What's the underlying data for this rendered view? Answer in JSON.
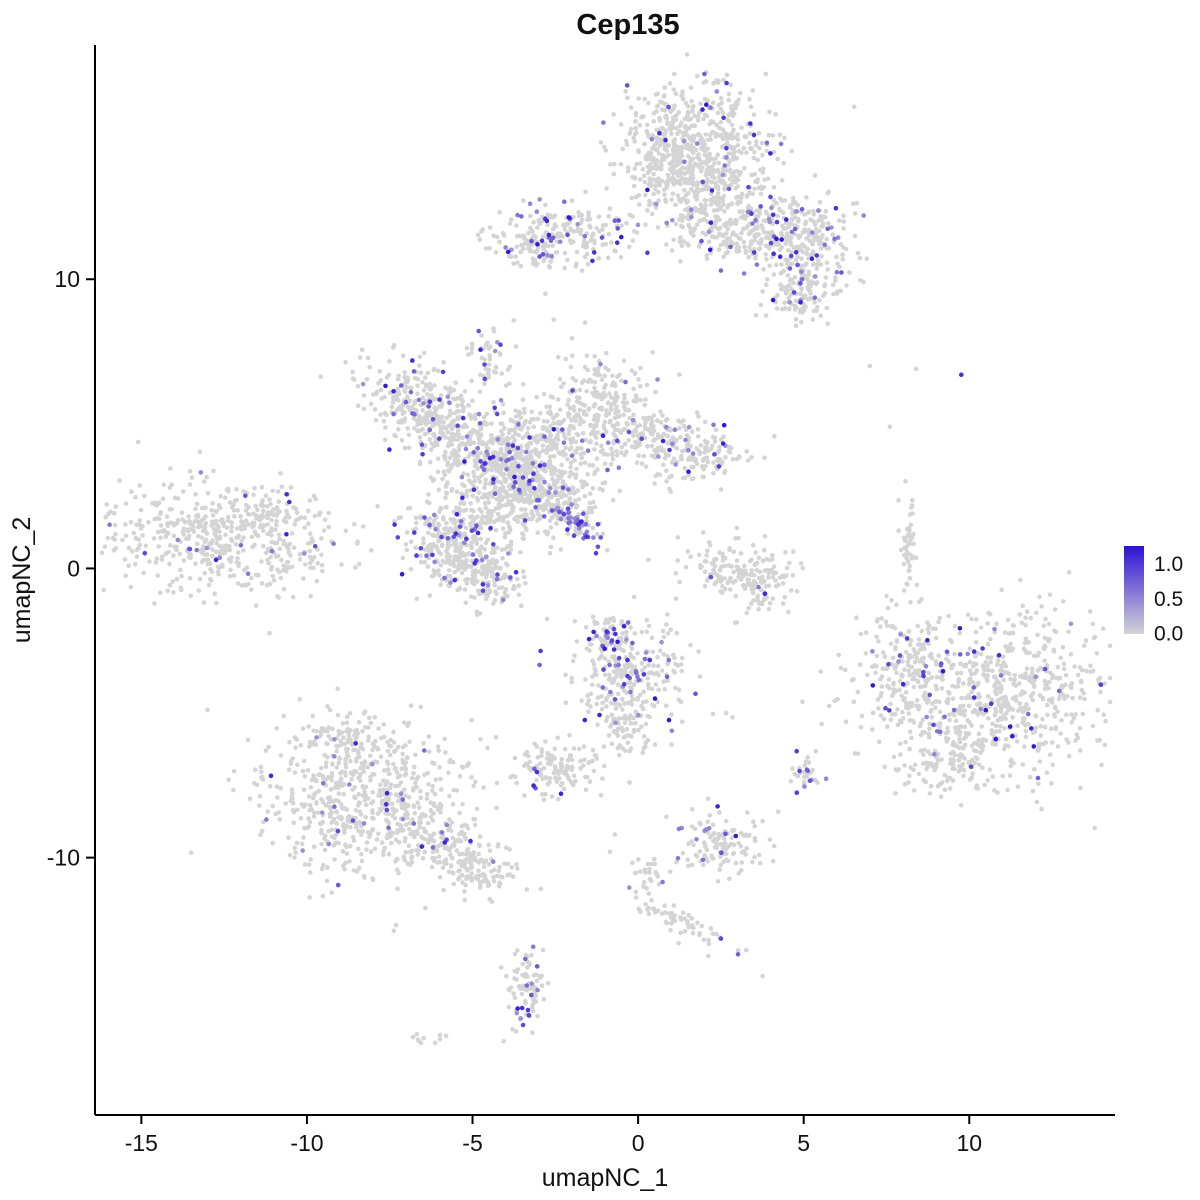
{
  "chart_data": {
    "type": "scatter",
    "title": "Cep135",
    "xlabel": "umapNC_1",
    "ylabel": "umapNC_2",
    "xlim": [
      -16.4,
      14.4
    ],
    "ylim": [
      -18.9,
      18.1
    ],
    "x_ticks": [
      -15,
      -10,
      -5,
      0,
      5,
      10
    ],
    "y_ticks": [
      -10,
      0,
      10
    ],
    "grid": false,
    "legend_position": "right",
    "point_radius": 2.3,
    "seed": 42,
    "expression_max": 1.27,
    "colors": {
      "low": "#D4D4D4",
      "high": "#2D12D8",
      "axis": "#000000"
    },
    "legend": {
      "ticks": [
        {
          "label": "1.0",
          "value": 1.0
        },
        {
          "label": "0.5",
          "value": 0.5
        },
        {
          "label": "0.0",
          "value": 0.0
        }
      ],
      "max_value": 1.27
    },
    "clusters": [
      {
        "name": "top-main-1",
        "cx": 1.6,
        "cy": 14.9,
        "sdx": 1.15,
        "sdy": 1.0,
        "n": 420,
        "frac": 0.05
      },
      {
        "name": "top-main-2",
        "cx": 2.4,
        "cy": 13.2,
        "sdx": 0.85,
        "sdy": 0.8,
        "n": 220,
        "frac": 0.05
      },
      {
        "name": "top-main-neck",
        "cx": 1.9,
        "cy": 11.9,
        "sdx": 0.5,
        "sdy": 0.7,
        "n": 90,
        "frac": 0.04
      },
      {
        "name": "top-main-left",
        "cx": 0.75,
        "cy": 13.9,
        "sdx": 0.5,
        "sdy": 0.95,
        "n": 120,
        "frac": 0.05
      },
      {
        "name": "top-right-arm-1",
        "cx": 4.6,
        "cy": 11.7,
        "sdx": 1.05,
        "sdy": 0.6,
        "n": 230,
        "frac": 0.12
      },
      {
        "name": "top-right-arm-2",
        "cx": 5.1,
        "cy": 10.2,
        "sdx": 0.6,
        "sdy": 0.55,
        "n": 110,
        "frac": 0.1
      },
      {
        "name": "top-right-arm-3",
        "cx": 4.8,
        "cy": 9.3,
        "sdx": 0.45,
        "sdy": 0.5,
        "n": 70,
        "frac": 0.08
      },
      {
        "name": "top-bridge",
        "cx": 3.4,
        "cy": 11.4,
        "sdx": 0.6,
        "sdy": 0.4,
        "n": 80,
        "frac": 0.06
      },
      {
        "name": "upper-left-strip",
        "cx": -2.2,
        "cy": 11.6,
        "sdx": 1.15,
        "sdy": 0.5,
        "n": 200,
        "frac": 0.15
      },
      {
        "name": "upper-left-tail",
        "cx": -3.2,
        "cy": 10.9,
        "sdx": 0.4,
        "sdy": 0.4,
        "n": 50,
        "frac": 0.1
      },
      {
        "name": "central-nw",
        "cx": -7.0,
        "cy": 6.0,
        "sdx": 0.85,
        "sdy": 0.6,
        "n": 160,
        "frac": 0.1,
        "angle": -20
      },
      {
        "name": "central-nw2",
        "cx": -6.0,
        "cy": 5.1,
        "sdx": 0.7,
        "sdy": 0.55,
        "n": 140,
        "frac": 0.08
      },
      {
        "name": "central-top-spur",
        "cx": -4.4,
        "cy": 7.2,
        "sdx": 0.3,
        "sdy": 0.6,
        "n": 50,
        "frac": 0.15
      },
      {
        "name": "central-w",
        "cx": -5.1,
        "cy": 4.2,
        "sdx": 0.8,
        "sdy": 0.6,
        "n": 180,
        "frac": 0.08
      },
      {
        "name": "central-core",
        "cx": -3.9,
        "cy": 3.6,
        "sdx": 0.8,
        "sdy": 0.7,
        "n": 260,
        "frac": 0.08
      },
      {
        "name": "central-mid",
        "cx": -2.8,
        "cy": 4.7,
        "sdx": 0.7,
        "sdy": 0.6,
        "n": 150,
        "frac": 0.08
      },
      {
        "name": "central-ne1",
        "cx": -1.2,
        "cy": 5.9,
        "sdx": 0.65,
        "sdy": 0.85,
        "n": 170,
        "frac": 0.08
      },
      {
        "name": "central-ne2",
        "cx": 0.1,
        "cy": 4.7,
        "sdx": 0.8,
        "sdy": 0.6,
        "n": 150,
        "frac": 0.06
      },
      {
        "name": "central-e",
        "cx": 1.7,
        "cy": 4.0,
        "sdx": 0.85,
        "sdy": 0.55,
        "n": 160,
        "frac": 0.08
      },
      {
        "name": "central-s",
        "cx": -2.7,
        "cy": 2.9,
        "sdx": 0.9,
        "sdy": 0.6,
        "n": 240,
        "frac": 0.07
      },
      {
        "name": "central-streak",
        "cx": -1.9,
        "cy": 1.6,
        "sdx": 0.55,
        "sdy": 0.18,
        "n": 90,
        "frac": 0.35,
        "angle": -35
      },
      {
        "name": "central-sw1",
        "cx": -5.6,
        "cy": 1.4,
        "sdx": 0.8,
        "sdy": 0.7,
        "n": 220,
        "frac": 0.12
      },
      {
        "name": "central-sw2",
        "cx": -5.3,
        "cy": 0.2,
        "sdx": 0.7,
        "sdy": 0.55,
        "n": 160,
        "frac": 0.08
      },
      {
        "name": "central-sw-tip",
        "cx": -4.4,
        "cy": -0.5,
        "sdx": 0.5,
        "sdy": 0.5,
        "n": 90,
        "frac": 0.06
      },
      {
        "name": "central-fill",
        "cx": -3.6,
        "cy": 2.3,
        "sdx": 0.9,
        "sdy": 0.8,
        "n": 210,
        "frac": 0.05
      },
      {
        "name": "far-left",
        "cx": -12.7,
        "cy": 1.1,
        "sdx": 1.9,
        "sdy": 0.9,
        "n": 520,
        "frac": 0.035,
        "angle": -8
      },
      {
        "name": "far-left-spur",
        "cx": -11.3,
        "cy": 1.9,
        "sdx": 0.5,
        "sdy": 0.4,
        "n": 60,
        "frac": 0.05
      },
      {
        "name": "mid-right-arc-1",
        "cx": 3.0,
        "cy": 0.1,
        "sdx": 0.85,
        "sdy": 0.5,
        "n": 120,
        "frac": 0.01
      },
      {
        "name": "mid-right-arc-2",
        "cx": 3.6,
        "cy": -0.7,
        "sdx": 0.5,
        "sdy": 0.45,
        "n": 80,
        "frac": 0.01
      },
      {
        "name": "right-streak",
        "cx": 8.15,
        "cy": 0.7,
        "sdx": 0.13,
        "sdy": 0.75,
        "n": 55,
        "frac": 0.05
      },
      {
        "name": "right-main",
        "cx": 10.6,
        "cy": -4.4,
        "sdx": 1.95,
        "sdy": 1.5,
        "n": 750,
        "frac": 0.05
      },
      {
        "name": "right-west-lobe",
        "cx": 8.2,
        "cy": -3.6,
        "sdx": 0.6,
        "sdy": 0.95,
        "n": 120,
        "frac": 0.08
      },
      {
        "name": "right-south-tail",
        "cx": 9.6,
        "cy": -6.7,
        "sdx": 0.8,
        "sdy": 0.45,
        "n": 90,
        "frac": 0.04
      },
      {
        "name": "bottom-left-main",
        "cx": -8.3,
        "cy": -8.0,
        "sdx": 1.6,
        "sdy": 1.3,
        "n": 650,
        "frac": 0.035
      },
      {
        "name": "bottom-left-tail",
        "cx": -5.9,
        "cy": -9.7,
        "sdx": 0.95,
        "sdy": 0.55,
        "n": 160,
        "frac": 0.02,
        "angle": -25
      },
      {
        "name": "bottom-left-tip",
        "cx": -4.6,
        "cy": -10.6,
        "sdx": 0.5,
        "sdy": 0.4,
        "n": 60,
        "frac": 0.02
      },
      {
        "name": "bottom-left-wisp",
        "cx": -8.9,
        "cy": -5.9,
        "sdx": 0.55,
        "sdy": 0.5,
        "n": 60,
        "frac": 0.06
      },
      {
        "name": "center-low",
        "cx": -0.3,
        "cy": -3.7,
        "sdx": 0.85,
        "sdy": 1.0,
        "n": 280,
        "frac": 0.12
      },
      {
        "name": "center-low-top",
        "cx": -0.9,
        "cy": -2.4,
        "sdx": 0.35,
        "sdy": 0.4,
        "n": 50,
        "frac": 0.2
      },
      {
        "name": "center-low-tail",
        "cx": -0.4,
        "cy": -5.4,
        "sdx": 0.4,
        "sdy": 0.5,
        "n": 60,
        "frac": 0.05
      },
      {
        "name": "small-dense",
        "cx": -2.5,
        "cy": -6.9,
        "sdx": 0.6,
        "sdy": 0.45,
        "n": 130,
        "frac": 0.03
      },
      {
        "name": "small-south",
        "cx": 2.5,
        "cy": -9.5,
        "sdx": 0.75,
        "sdy": 0.55,
        "n": 130,
        "frac": 0.08
      },
      {
        "name": "tiny-pair",
        "cx": 5.1,
        "cy": -7.2,
        "sdx": 0.25,
        "sdy": 0.35,
        "n": 30,
        "frac": 0.25
      },
      {
        "name": "south-trail",
        "cx": 1.1,
        "cy": -12.1,
        "sdx": 1.05,
        "sdy": 0.22,
        "n": 60,
        "frac": 0.05,
        "angle": -35
      },
      {
        "name": "south-trail-top",
        "cx": 0.25,
        "cy": -10.6,
        "sdx": 0.25,
        "sdy": 0.3,
        "n": 25,
        "frac": 0.04
      },
      {
        "name": "bottom-strip",
        "cx": -3.4,
        "cy": -14.5,
        "sdx": 0.28,
        "sdy": 0.75,
        "n": 85,
        "frac": 0.12
      },
      {
        "name": "bottom-speck",
        "cx": -6.3,
        "cy": -16.3,
        "sdx": 0.35,
        "sdy": 0.15,
        "n": 10,
        "frac": 0
      }
    ],
    "extra_points": [
      [
        -1.6,
        8.5,
        0
      ],
      [
        -2.8,
        9.5,
        0
      ],
      [
        -2.55,
        8.6,
        0
      ],
      [
        -4.35,
        8.2,
        0
      ],
      [
        7.0,
        7.0,
        0
      ],
      [
        8.4,
        6.9,
        0
      ],
      [
        9.76,
        6.7,
        1.1
      ],
      [
        7.6,
        4.9,
        0
      ],
      [
        7.5,
        -0.95,
        0
      ],
      [
        7.65,
        -1.1,
        0
      ],
      [
        2.2,
        -0.3,
        0.85
      ],
      [
        2.5,
        10.3,
        0.7
      ],
      [
        3.2,
        10.2,
        0.6
      ],
      [
        10.5,
        -4.9,
        1.27
      ],
      [
        10.8,
        -5.9,
        1.27
      ],
      [
        11.3,
        -5.8,
        1.2
      ],
      [
        10.9,
        -3.0,
        1.1
      ],
      [
        -3.1,
        -7.6,
        0.8
      ],
      [
        2.5,
        -12.8,
        0.9
      ],
      [
        -3.5,
        -15.2,
        1.05
      ],
      [
        -3.3,
        -15.45,
        0.95
      ],
      [
        2.66,
        -5.0,
        0
      ],
      [
        2.85,
        -5.15,
        0
      ],
      [
        -0.7,
        -9.2,
        0
      ],
      [
        -0.85,
        -9.8,
        0
      ],
      [
        -2.75,
        -1.75,
        0
      ],
      [
        -9.9,
        1.2,
        0
      ],
      [
        -9.3,
        -4.9,
        0
      ]
    ]
  }
}
